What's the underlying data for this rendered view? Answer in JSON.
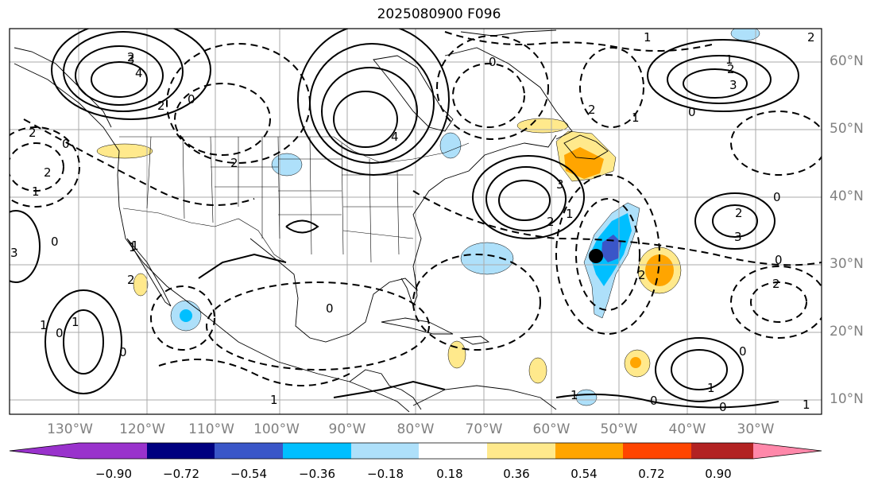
{
  "title": "2025080900 F096",
  "map": {
    "lat_labels": [
      "60°N",
      "50°N",
      "40°N",
      "30°N",
      "20°N",
      "10°N"
    ],
    "lon_labels": [
      "130°W",
      "120°W",
      "110°W",
      "100°W",
      "90°W",
      "80°W",
      "70°W",
      "60°W",
      "50°W",
      "40°W",
      "30°W"
    ],
    "contour_labels": [
      "2",
      "3",
      "4",
      "0",
      "2",
      "4",
      "3",
      "2",
      "1",
      "2",
      "3",
      "1",
      "0",
      "2",
      "3",
      "2",
      "1",
      "0",
      "2",
      "0",
      "0",
      "1",
      "1",
      "2",
      "3",
      "2",
      "2",
      "0",
      "2",
      "1",
      "0",
      "2",
      "1",
      "1",
      "0",
      "1",
      "0",
      "0",
      "1",
      "1",
      "1",
      "0",
      "1",
      "2",
      "0",
      "0"
    ],
    "marker": "storm-center-dot"
  },
  "colorbar": {
    "ticks": [
      "−0.90",
      "−0.72",
      "−0.54",
      "−0.36",
      "−0.18",
      "0.18",
      "0.36",
      "0.54",
      "0.72",
      "0.90"
    ],
    "colors": [
      "#9932cc",
      "#000080",
      "#3a56c8",
      "#00bfff",
      "#aee0fa",
      "#ffffff",
      "#ffe98c",
      "#ffa500",
      "#ff4500",
      "#b22222",
      "#ff88aa"
    ]
  }
}
